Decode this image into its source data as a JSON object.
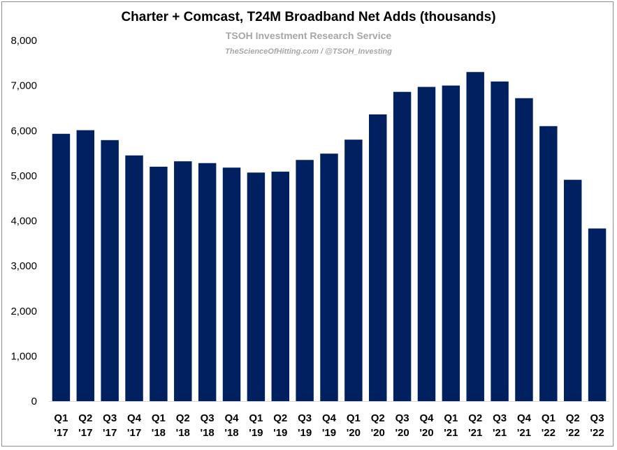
{
  "chart_data": {
    "type": "bar",
    "title": "Charter + Comcast, T24M Broadband Net Adds (thousands)",
    "subtitle": "TSOH Investment Research Service",
    "credit": "TheScienceOfHitting.com / @TSOH_Investing",
    "xlabel": "",
    "ylabel": "",
    "ylim": [
      0,
      8000
    ],
    "yticks": [
      "0",
      "1,000",
      "2,000",
      "3,000",
      "4,000",
      "5,000",
      "6,000",
      "7,000",
      "8,000"
    ],
    "ytick_values": [
      0,
      1000,
      2000,
      3000,
      4000,
      5000,
      6000,
      7000,
      8000
    ],
    "grid": false,
    "bar_color": "#002060",
    "categories": [
      [
        "Q1",
        "'17"
      ],
      [
        "Q2",
        "'17"
      ],
      [
        "Q3",
        "'17"
      ],
      [
        "Q4",
        "'17"
      ],
      [
        "Q1",
        "'18"
      ],
      [
        "Q2",
        "'18"
      ],
      [
        "Q3",
        "'18"
      ],
      [
        "Q4",
        "'18"
      ],
      [
        "Q1",
        "'19"
      ],
      [
        "Q2",
        "'19"
      ],
      [
        "Q3",
        "'19"
      ],
      [
        "Q4",
        "'19"
      ],
      [
        "Q1",
        "'20"
      ],
      [
        "Q2",
        "'20"
      ],
      [
        "Q3",
        "'20"
      ],
      [
        "Q4",
        "'20"
      ],
      [
        "Q1",
        "'21"
      ],
      [
        "Q2",
        "'21"
      ],
      [
        "Q3",
        "'21"
      ],
      [
        "Q4",
        "'21"
      ],
      [
        "Q1",
        "'22"
      ],
      [
        "Q2",
        "'22"
      ],
      [
        "Q3",
        "'22"
      ]
    ],
    "values": [
      5930,
      6010,
      5790,
      5450,
      5200,
      5320,
      5280,
      5180,
      5070,
      5090,
      5350,
      5490,
      5800,
      6360,
      6860,
      6970,
      7000,
      7300,
      7090,
      6720,
      6100,
      4910,
      3830
    ]
  }
}
